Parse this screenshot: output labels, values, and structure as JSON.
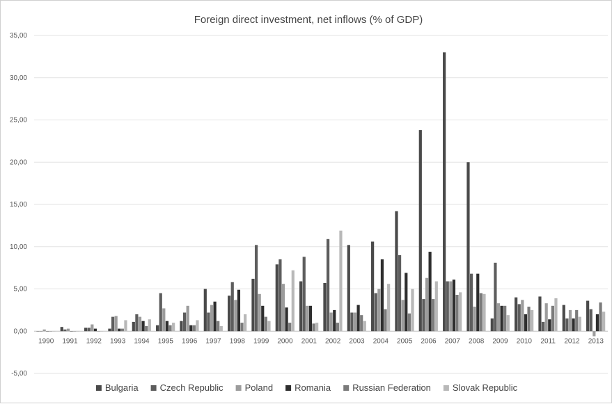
{
  "chart_data": {
    "type": "bar",
    "title": "Foreign direct investment, net inflows (% of GDP)",
    "xlabel": "",
    "ylabel": "",
    "ylim": [
      -5,
      35
    ],
    "yticks": [
      "-5,00",
      "0,00",
      "5,00",
      "10,00",
      "15,00",
      "20,00",
      "25,00",
      "30,00",
      "35,00"
    ],
    "ytick_values": [
      -5,
      0,
      5,
      10,
      15,
      20,
      25,
      30,
      35
    ],
    "grid": true,
    "legend_position": "bottom",
    "categories": [
      "1990",
      "1991",
      "1992",
      "1993",
      "1994",
      "1995",
      "1996",
      "1997",
      "1998",
      "1999",
      "2000",
      "2001",
      "2002",
      "2003",
      "2004",
      "2005",
      "2006",
      "2007",
      "2008",
      "2009",
      "2010",
      "2011",
      "2012",
      "2013"
    ],
    "series": [
      {
        "name": "Bulgaria",
        "color": "#4a4a4a",
        "values": [
          0.0,
          0.5,
          0.4,
          0.3,
          1.1,
          0.7,
          1.2,
          5.0,
          4.2,
          6.2,
          7.9,
          5.9,
          5.7,
          10.2,
          10.6,
          14.2,
          23.8,
          33.0,
          20.0,
          1.5,
          4.0,
          4.1,
          3.1,
          3.6
        ]
      },
      {
        "name": "Czech Republic",
        "color": "#5d5d5d",
        "values": [
          0.0,
          0.2,
          0.4,
          1.7,
          2.0,
          4.5,
          2.2,
          2.2,
          5.8,
          10.2,
          8.5,
          8.8,
          10.9,
          2.2,
          4.5,
          9.0,
          3.8,
          5.9,
          6.8,
          8.1,
          3.2,
          1.1,
          1.5,
          2.6
        ]
      },
      {
        "name": "Poland",
        "color": "#9c9c9c",
        "values": [
          0.2,
          0.3,
          0.8,
          1.8,
          1.7,
          2.7,
          3.0,
          3.1,
          3.7,
          4.4,
          5.6,
          3.0,
          2.2,
          2.2,
          5.0,
          3.7,
          6.3,
          5.9,
          2.9,
          3.3,
          3.7,
          3.3,
          2.5,
          -0.6
        ]
      },
      {
        "name": "Romania",
        "color": "#2e2e2e",
        "values": [
          0.0,
          0.0,
          0.3,
          0.3,
          1.2,
          1.2,
          0.7,
          3.5,
          4.9,
          3.0,
          2.8,
          3.0,
          2.5,
          3.1,
          8.5,
          6.9,
          9.4,
          6.1,
          6.8,
          3.0,
          2.0,
          1.4,
          1.5,
          2.0
        ]
      },
      {
        "name": "Russian Federation",
        "color": "#7b7b7b",
        "values": [
          0.0,
          0.0,
          0.0,
          0.3,
          0.6,
          0.7,
          0.7,
          1.2,
          1.0,
          1.7,
          1.0,
          0.9,
          1.0,
          1.9,
          2.6,
          2.1,
          3.8,
          4.3,
          4.5,
          3.0,
          2.9,
          3.0,
          2.5,
          3.4
        ]
      },
      {
        "name": "Slovak Republic",
        "color": "#b8b8b8",
        "values": [
          0.0,
          0.0,
          0.0,
          1.3,
          1.4,
          1.0,
          1.3,
          0.6,
          2.0,
          1.2,
          7.2,
          1.0,
          11.9,
          1.2,
          5.6,
          5.0,
          5.9,
          4.6,
          4.4,
          1.9,
          2.5,
          3.9,
          1.7,
          2.3
        ]
      }
    ]
  }
}
